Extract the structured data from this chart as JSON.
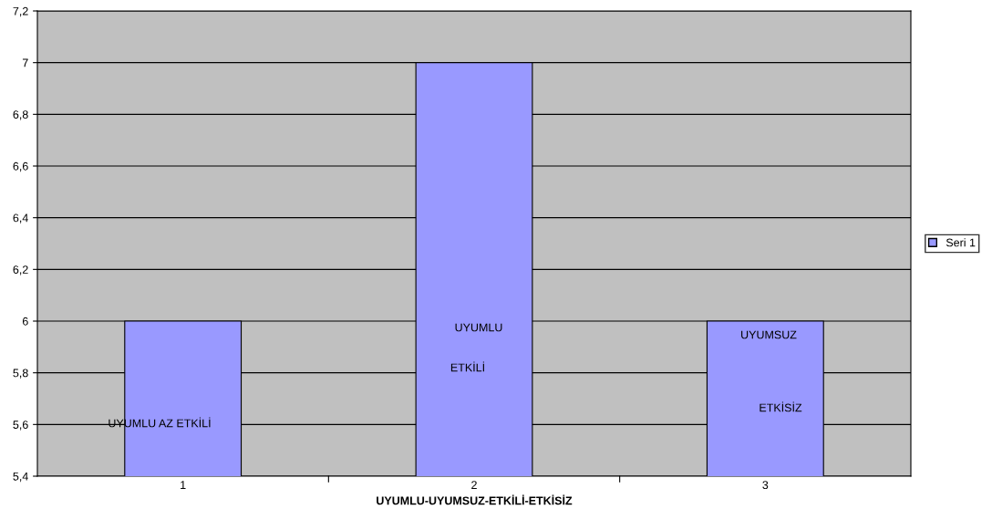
{
  "chart_data": {
    "type": "bar",
    "xlabel": "UYUMLU-UYUMSUZ-ETKİLİ-ETKİSİZ",
    "categories": [
      "1",
      "2",
      "3"
    ],
    "series": [
      {
        "name": "Seri 1",
        "color": "#9999ff",
        "values": [
          6,
          7,
          6
        ]
      }
    ],
    "ylim": [
      5.4,
      7.2
    ],
    "yticks": [
      {
        "value": 5.4,
        "label": "5,4"
      },
      {
        "value": 5.6,
        "label": "5,6"
      },
      {
        "value": 5.8,
        "label": "5,8"
      },
      6,
      {
        "value": 6.2,
        "label": "6,2"
      },
      {
        "value": 6.4,
        "label": "6,4"
      },
      {
        "value": 6.6,
        "label": "6,6"
      },
      {
        "value": 6.8,
        "label": "6,8"
      },
      7,
      {
        "value": 7.2,
        "label": "7,2"
      }
    ],
    "grid": "y",
    "legend": "right",
    "annotations": [
      "UYUMLU AZ ETKİLİ",
      "UYUMLU",
      "ETKİLİ",
      "UYUMSUZ",
      "ETKİSİZ"
    ]
  }
}
